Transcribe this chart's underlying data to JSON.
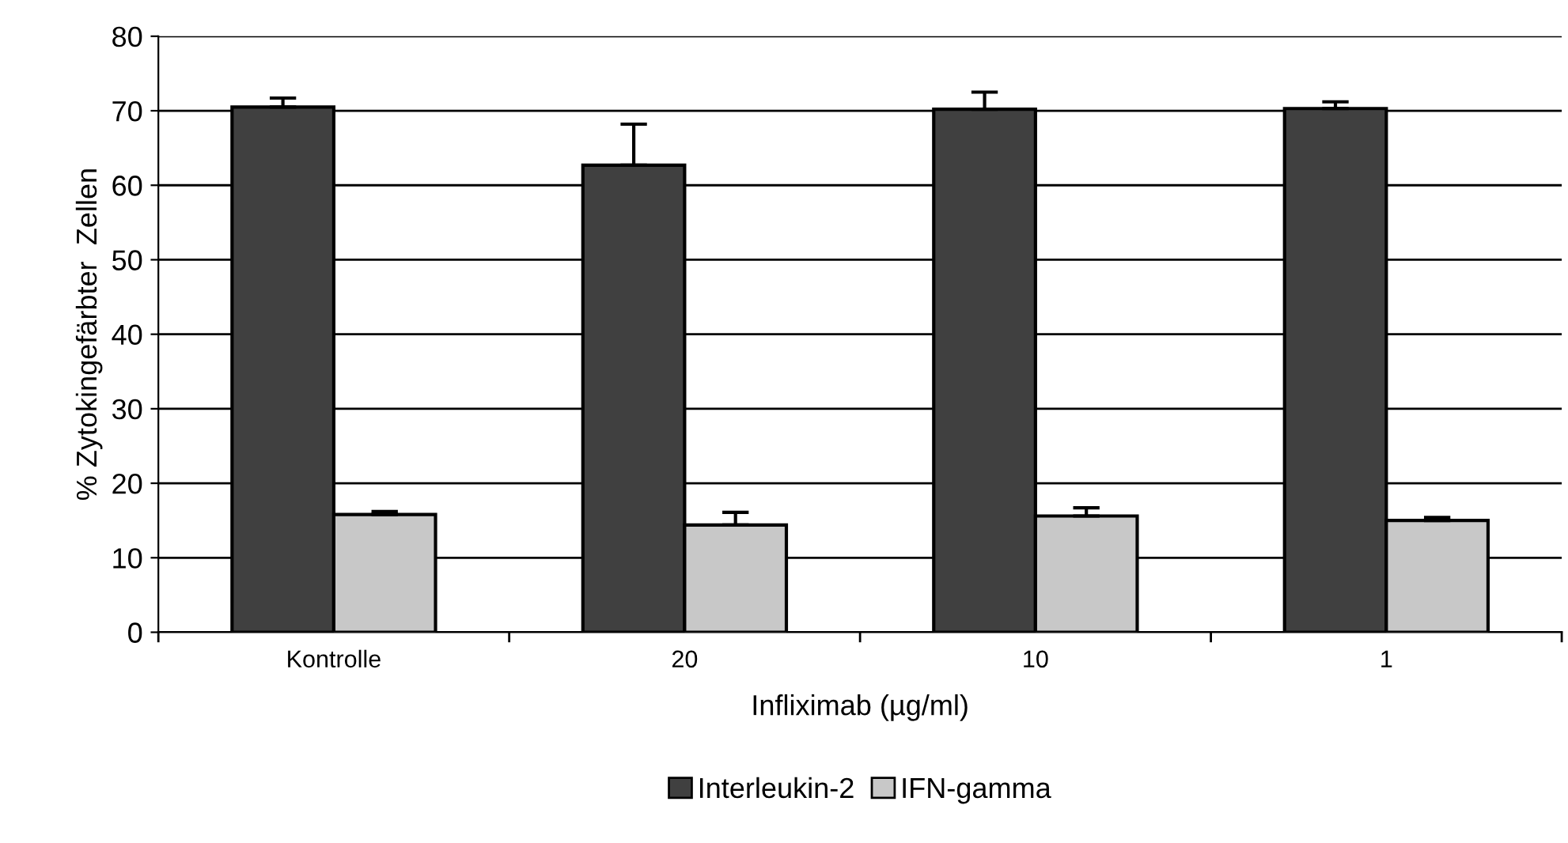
{
  "chart_data": {
    "type": "bar",
    "xlabel": "Infliximab (µg/ml)",
    "ylabel": "% Zytokingefärbter  Zellen",
    "categories": [
      "Kontrolle",
      "20",
      "10",
      "1"
    ],
    "series": [
      {
        "name": "Interleukin-2",
        "color": "#404040",
        "values": [
          70.5,
          62.7,
          70.2,
          70.3
        ],
        "errors": [
          [
            70.5,
            71.7
          ],
          [
            62.7,
            68.2
          ],
          [
            70.2,
            72.5
          ],
          [
            70.3,
            71.2
          ]
        ]
      },
      {
        "name": "IFN-gamma",
        "color": "#c8c8c8",
        "values": [
          15.8,
          14.4,
          15.6,
          15.0
        ],
        "errors": [
          [
            15.8,
            16.2
          ],
          [
            14.4,
            16.1
          ],
          [
            15.6,
            16.7
          ],
          [
            15.0,
            15.4
          ]
        ]
      }
    ],
    "ylim": [
      0,
      80
    ],
    "yticks": [
      0,
      10,
      20,
      30,
      40,
      50,
      60,
      70,
      80
    ],
    "grid": "y",
    "legend": "bottom"
  }
}
